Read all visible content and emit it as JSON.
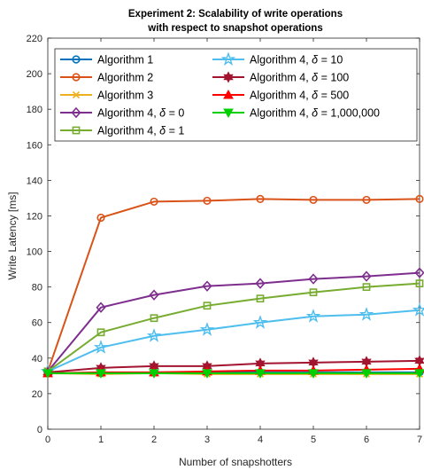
{
  "chart_data": {
    "type": "line",
    "title_lines": [
      "Experiment 2: Scalability of write operations",
      "with respect to snapshot operations"
    ],
    "xlabel": "Number of snapshotters",
    "ylabel": "Write Latency [ms]",
    "xlim": [
      0,
      7
    ],
    "ylim": [
      0,
      220
    ],
    "xticks": [
      "0",
      "1",
      "2",
      "3",
      "4",
      "5",
      "6",
      "7"
    ],
    "yticks": [
      "0",
      "20",
      "40",
      "60",
      "80",
      "100",
      "120",
      "140",
      "160",
      "180",
      "200",
      "220"
    ],
    "x": [
      0,
      1,
      2,
      3,
      4,
      5,
      6,
      7
    ],
    "legend_placement": "top-left, two columns",
    "series": [
      {
        "name": "Algorithm 1",
        "name_parts": [
          "Algorithm 1"
        ],
        "color": "#0072BD",
        "marker": "circle",
        "values": [
          31.5,
          31.5,
          32,
          32,
          32,
          32,
          32,
          32
        ]
      },
      {
        "name": "Algorithm 2",
        "name_parts": [
          "Algorithm 2"
        ],
        "color": "#D95319",
        "marker": "circle",
        "values": [
          32.5,
          119,
          128,
          128.5,
          129.5,
          129,
          129,
          129.5
        ]
      },
      {
        "name": "Algorithm 3",
        "name_parts": [
          "Algorithm 3"
        ],
        "color": "#EDB120",
        "marker": "x",
        "values": [
          31.5,
          31,
          31.5,
          31,
          31,
          31,
          31,
          31
        ]
      },
      {
        "name": "Algorithm 4, δ = 0",
        "name_parts": [
          "Algorithm 4, ",
          "δ",
          " = 0"
        ],
        "color": "#7E2F8E",
        "marker": "diamond",
        "values": [
          32.5,
          68.5,
          75.5,
          80.5,
          82,
          84.5,
          86,
          88
        ]
      },
      {
        "name": "Algorithm 4, δ = 1",
        "name_parts": [
          "Algorithm 4, ",
          "δ",
          " = 1"
        ],
        "color": "#77AC30",
        "marker": "square",
        "values": [
          32.5,
          54.5,
          62.5,
          69.5,
          73.5,
          77,
          80,
          82
        ]
      },
      {
        "name": "Algorithm 4, δ = 10",
        "name_parts": [
          "Algorithm 4, ",
          "δ",
          " = 10"
        ],
        "color": "#4DBEEE",
        "marker": "star",
        "values": [
          32.5,
          46,
          52.5,
          56,
          60,
          63.5,
          64.5,
          67
        ]
      },
      {
        "name": "Algorithm 4, δ = 100",
        "name_parts": [
          "Algorithm 4, ",
          "δ",
          " = 100"
        ],
        "color": "#A2142F",
        "marker": "hexagram",
        "values": [
          32,
          34.5,
          35.5,
          35.5,
          37,
          37.5,
          38,
          38.5
        ]
      },
      {
        "name": "Algorithm 4, δ = 500",
        "name_parts": [
          "Algorithm 4, ",
          "δ",
          " = 500"
        ],
        "color": "#FF0000",
        "marker": "triangle-up",
        "values": [
          31.5,
          32,
          32,
          32.5,
          33,
          33,
          33.5,
          34
        ]
      },
      {
        "name": "Algorithm 4, δ = 1,000,000",
        "name_parts": [
          "Algorithm 4, ",
          "δ",
          " = 1,000,000"
        ],
        "color": "#00D000",
        "marker": "triangle-down",
        "values": [
          31.5,
          31.5,
          31.5,
          31.5,
          31.5,
          31.5,
          31.5,
          31.5
        ]
      }
    ]
  }
}
